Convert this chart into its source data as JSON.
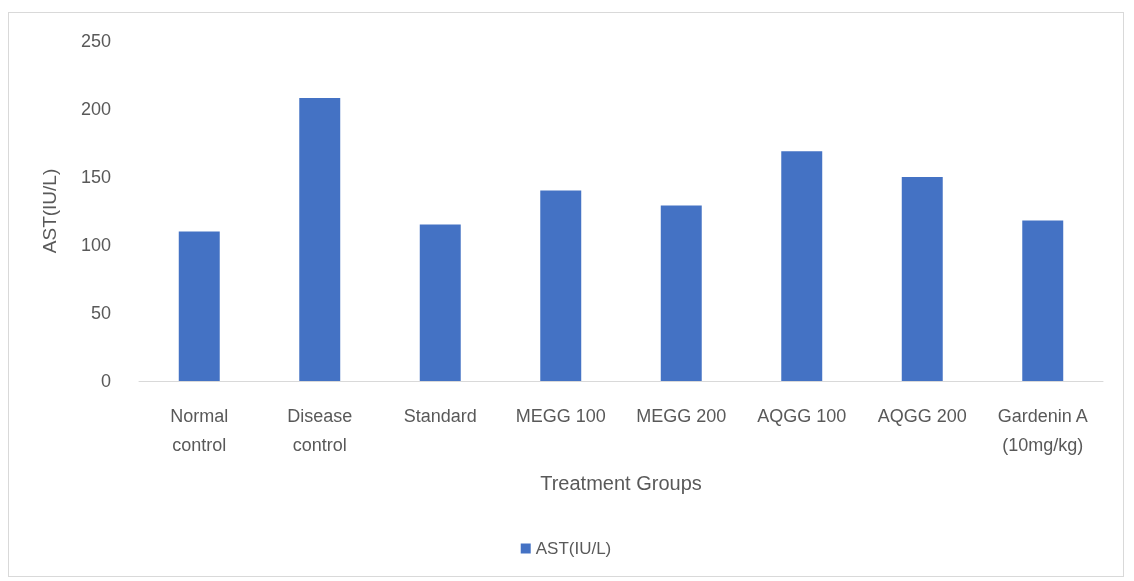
{
  "chart_data": {
    "type": "bar",
    "xlabel": "Treatment Groups",
    "ylabel": "AST(IU/L)",
    "categories": [
      "Normal\ncontrol",
      "Disease\ncontrol",
      "Standard",
      "MEGG 100",
      "MEGG 200",
      "AQGG 100",
      "AQGG 200",
      "Gardenin A\n(10mg/kg)"
    ],
    "series": [
      {
        "name": "AST(IU/L)",
        "color": "#4472c4",
        "values": [
          110,
          208,
          115,
          140,
          129,
          169,
          150,
          118
        ]
      }
    ],
    "ylim": [
      0,
      250
    ],
    "yticks": [
      0,
      50,
      100,
      150,
      200,
      250
    ],
    "grid": false,
    "legend": "bottom"
  }
}
